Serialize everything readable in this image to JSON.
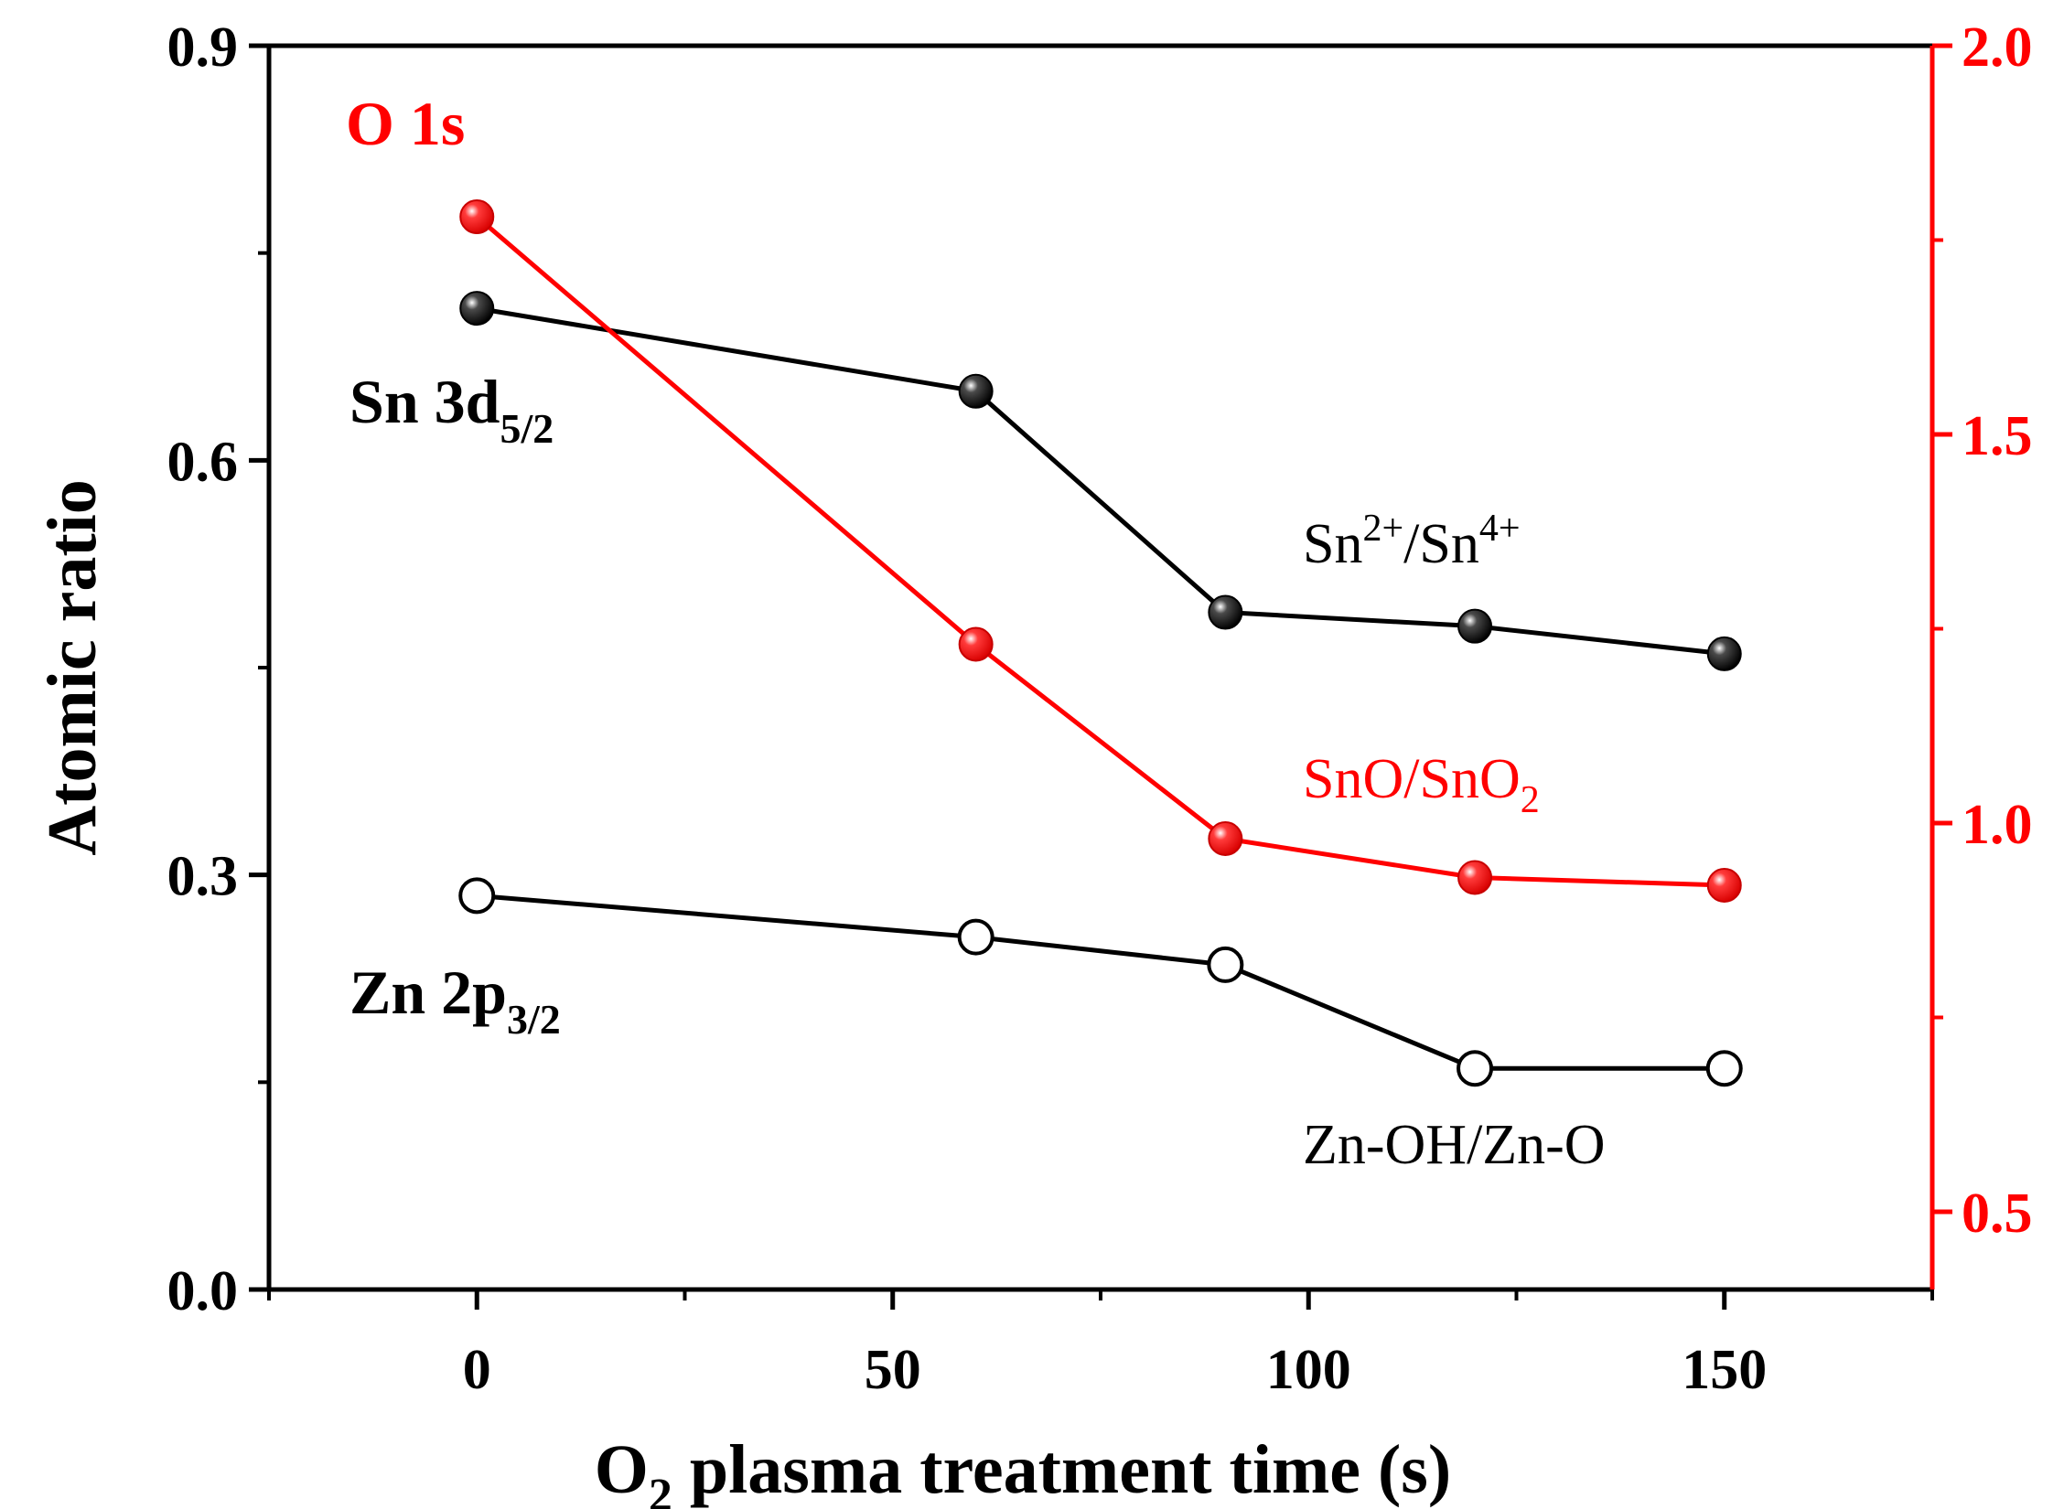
{
  "chart_data": {
    "type": "line",
    "xlabel": {
      "main": "O",
      "sub": "2",
      "rest": " plasma treatment time (s)"
    },
    "ylabel_left": "Atomic ratio",
    "xlim": [
      -25,
      175
    ],
    "ylim_left": [
      0.0,
      0.9
    ],
    "ylim_right": [
      0.4,
      2.0
    ],
    "x_ticks": [
      "0",
      "50",
      "100",
      "150"
    ],
    "x_tick_values": [
      0,
      50,
      100,
      150
    ],
    "y_left_ticks": [
      "0.0",
      "0.3",
      "0.6",
      "0.9"
    ],
    "y_left_tick_values": [
      0.0,
      0.3,
      0.6,
      0.9
    ],
    "y_right_ticks": [
      "0.5",
      "1.0",
      "1.5",
      "2.0"
    ],
    "y_right_tick_values": [
      0.5,
      1.0,
      1.5,
      2.0
    ],
    "series": [
      {
        "name": "Sn 3d5/2",
        "ratio_label": "Sn2+/Sn4+",
        "axis": "left",
        "color": "#000000",
        "marker": "filled",
        "x": [
          0,
          60,
          90,
          120,
          150
        ],
        "values": [
          0.71,
          0.65,
          0.49,
          0.48,
          0.46
        ]
      },
      {
        "name": "Zn 2p3/2",
        "ratio_label": "Zn-OH/Zn-O",
        "axis": "left",
        "color": "#000000",
        "marker": "open",
        "x": [
          0,
          60,
          90,
          120,
          150
        ],
        "values": [
          0.285,
          0.255,
          0.235,
          0.16,
          0.16
        ]
      },
      {
        "name": "O 1s",
        "ratio_label": "SnO/SnO2",
        "axis": "right",
        "color": "#ff0000",
        "marker": "filled",
        "x": [
          0,
          60,
          90,
          120,
          150
        ],
        "values": [
          1.78,
          1.23,
          0.98,
          0.93,
          0.92
        ]
      }
    ],
    "annotations": {
      "o1s": "O 1s",
      "sn_main": "Sn 3d",
      "sn_sub": "5/2",
      "zn_main": "Zn 2p",
      "zn_sub": "3/2",
      "sn_ratio": {
        "a": "Sn",
        "a_sup": "2+",
        "b": "/Sn",
        "b_sup": "4+"
      },
      "sno_ratio": {
        "a": "SnO/SnO",
        "a_sub": "2"
      },
      "zn_ratio": "Zn-OH/Zn-O"
    }
  }
}
